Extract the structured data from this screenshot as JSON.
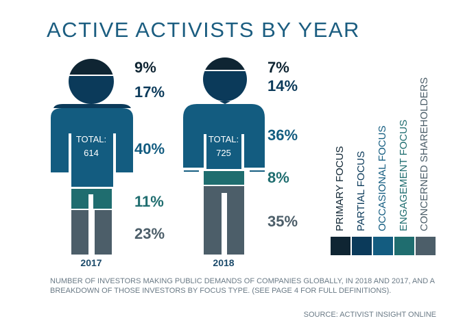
{
  "title": "ACTIVE ACTIVISTS BY YEAR",
  "chart_data": {
    "type": "pictogram",
    "title": "ACTIVE ACTIVISTS BY YEAR",
    "categories": [
      "PRIMARY FOCUS",
      "PARTIAL FOCUS",
      "OCCASIONAL FOCUS",
      "ENGAGEMENT FOCUS",
      "CONCERNED SHAREHOLDERS"
    ],
    "colors": [
      "#0f2533",
      "#0b3a5a",
      "#135c80",
      "#1f6d6f",
      "#4c5e69"
    ],
    "series": [
      {
        "name": "2017",
        "total_label": "TOTAL:",
        "total": "614",
        "values": [
          9,
          17,
          40,
          11,
          23
        ],
        "labels": [
          "9%",
          "17%",
          "40%",
          "11%",
          "23%"
        ]
      },
      {
        "name": "2018",
        "total_label": "TOTAL:",
        "total": "725",
        "values": [
          7,
          14,
          36,
          8,
          35
        ],
        "labels": [
          "7%",
          "14%",
          "36%",
          "8%",
          "35%"
        ]
      }
    ],
    "legend_position": "right"
  },
  "caption": "NUMBER OF INVESTORS MAKING PUBLIC DEMANDS OF COMPANIES GLOBALLY, IN 2018 AND 2017, AND A BREAKDOWN OF THOSE INVESTORS BY FOCUS TYPE. (SEE PAGE 4 FOR FULL DEFINITIONS).",
  "source": "SOURCE: ACTIVIST INSIGHT ONLINE"
}
